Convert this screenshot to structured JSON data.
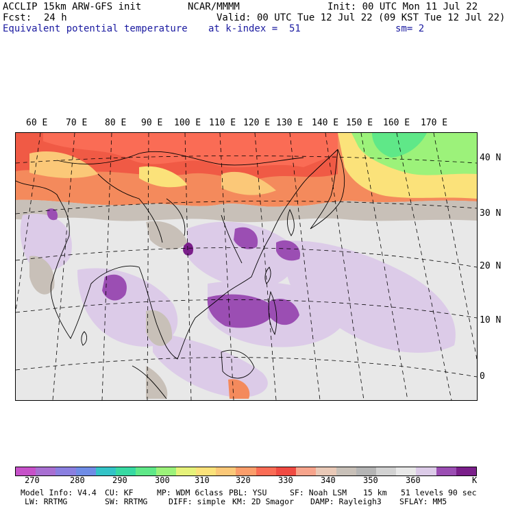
{
  "header": {
    "model": "ACCLIP 15km ARW-GFS init",
    "org": "NCAR/MMMM",
    "init": "Init: 00 UTC Mon 11 Jul 22",
    "fcst_label": "Fcst:",
    "fcst_value": "24 h",
    "valid": "Valid: 00 UTC Tue 12 Jul 22 (09 KST Tue 12 Jul 22)",
    "field": "Equivalent potential temperature",
    "level": "at k-index =  51",
    "smooth": "sm= 2"
  },
  "map": {
    "lon_labels": [
      "60 E",
      "70 E",
      "80 E",
      "90 E",
      "100 E",
      "110 E",
      "120 E",
      "130 E",
      "140 E",
      "150 E",
      "160 E",
      "170 E"
    ],
    "lat_labels": [
      "40 N",
      "30 N",
      "20 N",
      "10 N",
      "0"
    ]
  },
  "colorbar": {
    "colors": [
      "#c651c9",
      "#a86fd2",
      "#8a7fe0",
      "#6f8ce6",
      "#33c3c7",
      "#37d9a2",
      "#5fe888",
      "#9cf27a",
      "#e6f27a",
      "#fbe27a",
      "#fbc878",
      "#fb9d6a",
      "#fa6c55",
      "#f04a42",
      "#f7a48c",
      "#e9c9b7",
      "#c8c0b8",
      "#b5b5b5",
      "#d2d2d2",
      "#e8e8e8",
      "#dccbe8",
      "#9b4eb3",
      "#7a1f8a"
    ],
    "tick_labels": [
      "270",
      "280",
      "290",
      "300",
      "310",
      "320",
      "330",
      "340",
      "350",
      "360"
    ],
    "unit": "K"
  },
  "footer": {
    "line1": [
      "Model Info: V4.4",
      "CU: KF",
      "MP: WDM 6class",
      "PBL: YSU",
      "SF: Noah LSM",
      "15 km",
      "51 levels",
      "90 sec"
    ],
    "line2": [
      "LW: RRTMG",
      "SW: RRTMG",
      "DIFF: simple",
      "KM: 2D Smagor",
      "DAMP: Rayleigh3",
      "SFLAY: MM5"
    ]
  }
}
